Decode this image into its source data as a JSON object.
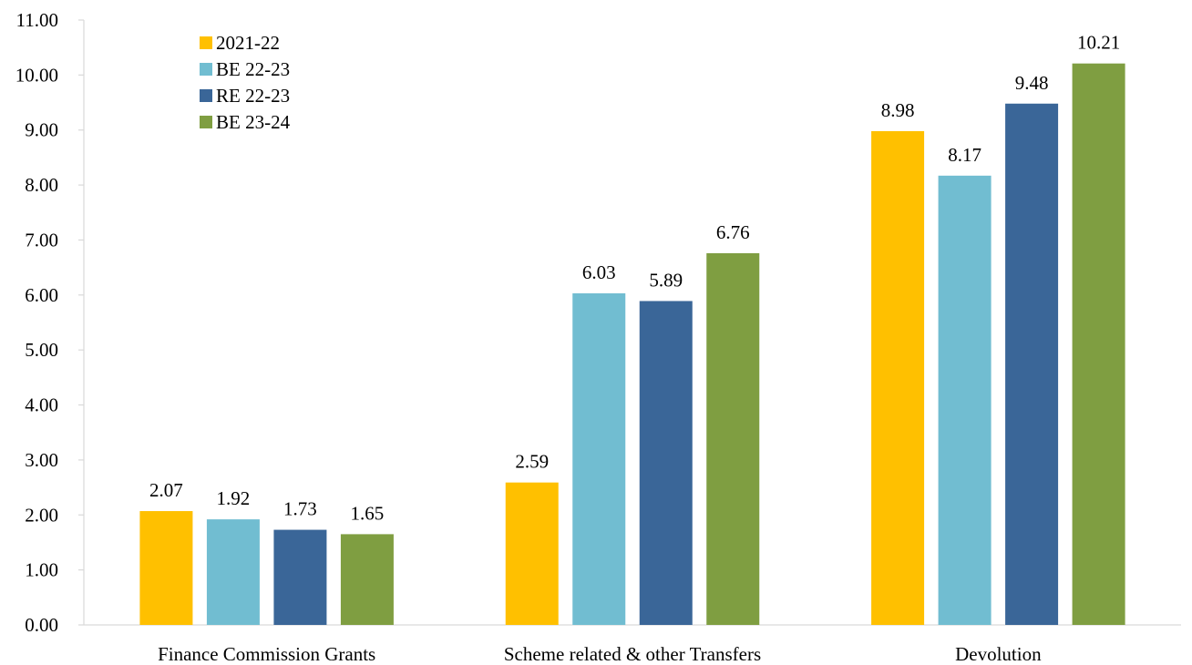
{
  "chart_data": {
    "type": "bar",
    "categories": [
      "Finance Commission Grants",
      "Scheme related & other Transfers",
      "Devolution"
    ],
    "series": [
      {
        "name": "2021-22",
        "color": "#FFC000",
        "values": [
          2.07,
          2.59,
          8.98
        ]
      },
      {
        "name": "BE 22-23",
        "color": "#71BDD1",
        "values": [
          1.92,
          6.03,
          8.17
        ]
      },
      {
        "name": "RE 22-23",
        "color": "#3A6698",
        "values": [
          1.73,
          5.89,
          9.48
        ]
      },
      {
        "name": "BE 23-24",
        "color": "#7F9E41",
        "values": [
          1.65,
          6.76,
          10.21
        ]
      }
    ],
    "y_ticks": [
      "0.00",
      "1.00",
      "2.00",
      "3.00",
      "4.00",
      "5.00",
      "6.00",
      "7.00",
      "8.00",
      "9.00",
      "10.00",
      "11.00"
    ],
    "ylim": [
      0,
      11
    ],
    "title": "",
    "xlabel": "",
    "ylabel": "",
    "grid": false,
    "legend_position": "top-left",
    "axis_color": "#D9D9D9"
  }
}
